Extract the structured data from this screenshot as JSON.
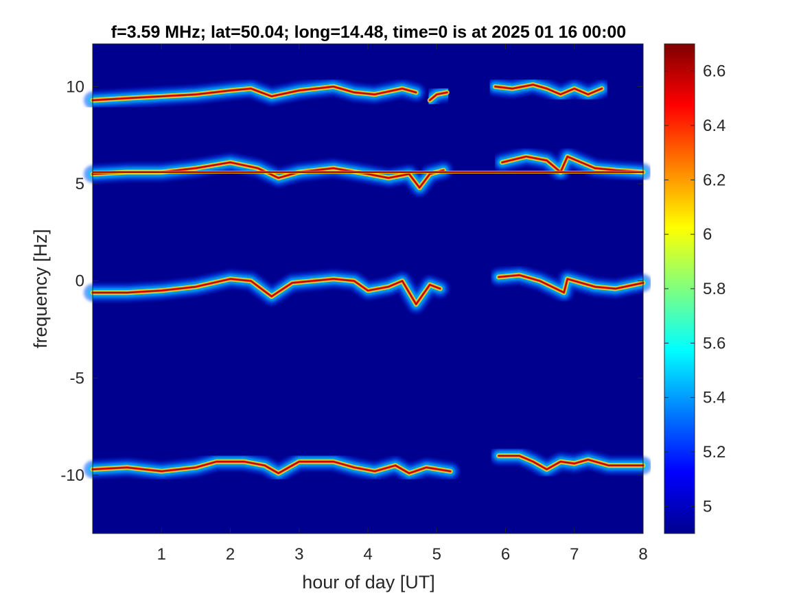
{
  "chart_data": {
    "type": "heatmap",
    "title": "f=3.59 MHz;  lat=50.04; long=14.48, time=0 is at 2025 01 16 00:00",
    "xlabel": "hour of day [UT]",
    "ylabel": "frequency [Hz]",
    "xlim": [
      0,
      8
    ],
    "ylim": [
      -13,
      12.2
    ],
    "xticks": [
      1,
      2,
      3,
      4,
      5,
      6,
      7,
      8
    ],
    "yticks": [
      -10,
      -5,
      0,
      5,
      10
    ],
    "colorbar": {
      "range": [
        4.9,
        6.7
      ],
      "ticks": [
        5,
        5.2,
        5.4,
        5.6,
        5.8,
        6,
        6.2,
        6.4,
        6.6
      ],
      "colormap": "jet"
    },
    "background_color": "#00008f",
    "traces": [
      {
        "name": "",
        "segments": [
          [
            [
              0,
              9.3
            ],
            [
              0.5,
              9.4
            ],
            [
              1,
              9.5
            ],
            [
              1.5,
              9.6
            ],
            [
              2,
              9.8
            ],
            [
              2.3,
              9.9
            ],
            [
              2.6,
              9.5
            ],
            [
              3,
              9.8
            ],
            [
              3.5,
              10
            ],
            [
              3.8,
              9.7
            ],
            [
              4.1,
              9.6
            ],
            [
              4.5,
              9.9
            ],
            [
              4.7,
              9.7
            ]
          ],
          [
            [
              4.9,
              9.3
            ],
            [
              5,
              9.6
            ],
            [
              5.15,
              9.7
            ]
          ],
          [
            [
              5.85,
              10
            ],
            [
              6.1,
              9.9
            ],
            [
              6.4,
              10.1
            ],
            [
              6.6,
              9.9
            ],
            [
              6.8,
              9.6
            ],
            [
              7,
              9.9
            ],
            [
              7.2,
              9.6
            ],
            [
              7.4,
              9.9
            ]
          ]
        ]
      },
      {
        "name": "",
        "segments": [
          [
            [
              0,
              5.5
            ],
            [
              0.5,
              5.6
            ],
            [
              1,
              5.6
            ],
            [
              1.5,
              5.8
            ],
            [
              2,
              6.1
            ],
            [
              2.4,
              5.8
            ],
            [
              2.7,
              5.3
            ],
            [
              3,
              5.6
            ],
            [
              3.5,
              5.8
            ],
            [
              4,
              5.5
            ],
            [
              4.3,
              5.3
            ],
            [
              4.6,
              5.5
            ],
            [
              4.75,
              4.8
            ],
            [
              4.9,
              5.5
            ],
            [
              5.1,
              5.7
            ]
          ],
          [
            [
              5.95,
              6.1
            ],
            [
              6.3,
              6.4
            ],
            [
              6.6,
              6.2
            ],
            [
              6.8,
              5.6
            ],
            [
              6.9,
              6.4
            ],
            [
              7.3,
              5.8
            ],
            [
              7.6,
              5.7
            ],
            [
              8,
              5.6
            ]
          ]
        ]
      },
      {
        "name": "",
        "segments": [
          [
            [
              0,
              -0.6
            ],
            [
              0.5,
              -0.6
            ],
            [
              1,
              -0.5
            ],
            [
              1.5,
              -0.3
            ],
            [
              2,
              0.1
            ],
            [
              2.3,
              0
            ],
            [
              2.6,
              -0.8
            ],
            [
              2.9,
              -0.1
            ],
            [
              3.5,
              0.1
            ],
            [
              3.8,
              0
            ],
            [
              4,
              -0.5
            ],
            [
              4.3,
              -0.3
            ],
            [
              4.5,
              0
            ],
            [
              4.7,
              -1.2
            ],
            [
              4.9,
              -0.2
            ],
            [
              5.05,
              -0.4
            ]
          ],
          [
            [
              5.9,
              0.2
            ],
            [
              6.2,
              0.3
            ],
            [
              6.5,
              0
            ],
            [
              6.85,
              -0.6
            ],
            [
              6.9,
              0.1
            ],
            [
              7.3,
              -0.3
            ],
            [
              7.6,
              -0.4
            ],
            [
              8,
              -0.1
            ]
          ]
        ]
      },
      {
        "name": "",
        "segments": [
          [
            [
              0,
              -9.7
            ],
            [
              0.5,
              -9.6
            ],
            [
              1,
              -9.8
            ],
            [
              1.5,
              -9.6
            ],
            [
              1.8,
              -9.3
            ],
            [
              2.2,
              -9.3
            ],
            [
              2.5,
              -9.5
            ],
            [
              2.7,
              -9.9
            ],
            [
              3,
              -9.3
            ],
            [
              3.5,
              -9.3
            ],
            [
              3.8,
              -9.6
            ],
            [
              4.1,
              -9.8
            ],
            [
              4.4,
              -9.5
            ],
            [
              4.6,
              -9.9
            ],
            [
              4.85,
              -9.6
            ],
            [
              5.2,
              -9.8
            ]
          ],
          [
            [
              5.9,
              -9
            ],
            [
              6.2,
              -9
            ],
            [
              6.4,
              -9.3
            ],
            [
              6.6,
              -9.7
            ],
            [
              6.8,
              -9.3
            ],
            [
              7,
              -9.4
            ],
            [
              7.2,
              -9.2
            ],
            [
              7.5,
              -9.5
            ],
            [
              8,
              -9.5
            ]
          ]
        ]
      },
      {
        "name": "",
        "segments": [
          [
            [
              0,
              5.6
            ],
            [
              8,
              5.6
            ]
          ]
        ]
      }
    ],
    "grid": false
  }
}
